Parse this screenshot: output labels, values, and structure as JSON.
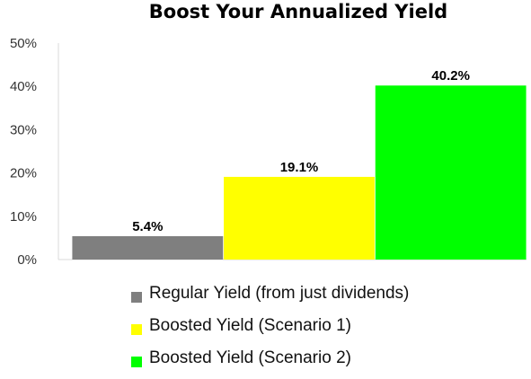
{
  "chart_data": {
    "type": "bar",
    "title": "Boost Your Annualized Yield",
    "categories": [
      "Regular Yield (from just dividends)",
      "Boosted Yield (Scenario 1)",
      "Boosted Yield (Scenario 2)"
    ],
    "values": [
      5.4,
      19.1,
      40.2
    ],
    "value_labels": [
      "5.4%",
      "19.1%",
      "40.2%"
    ],
    "colors": [
      "#7f7f7f",
      "#ffff00",
      "#00ff00"
    ],
    "ylim": [
      0,
      50
    ],
    "yticks": [
      "0%",
      "10%",
      "20%",
      "30%",
      "40%",
      "50%"
    ],
    "xlabel": "",
    "ylabel": "",
    "grid": false,
    "legend_position": "bottom"
  }
}
